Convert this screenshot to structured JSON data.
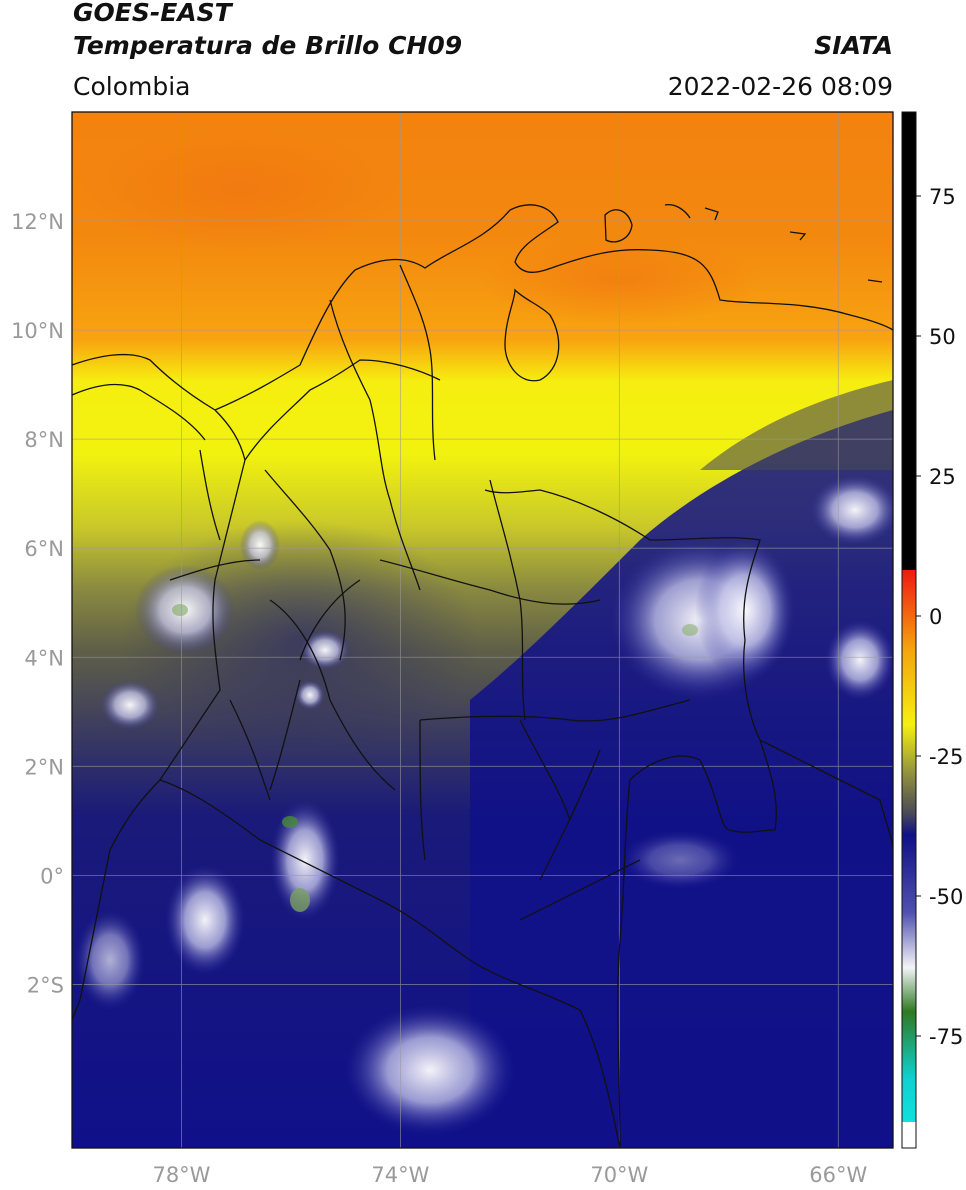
{
  "header": {
    "satellite": "GOES-EAST",
    "product": "Temperatura de Brillo CH09",
    "region": "Colombia",
    "org": "SIATA",
    "datetime": "2022-02-26 08:09"
  },
  "map": {
    "lon_range": [
      -80,
      -65
    ],
    "lat_range": [
      -5,
      14
    ],
    "lon_ticks": [
      {
        "value": -78,
        "label": "78°W"
      },
      {
        "value": -74,
        "label": "74°W"
      },
      {
        "value": -70,
        "label": "70°W"
      },
      {
        "value": -66,
        "label": "66°W"
      }
    ],
    "lat_ticks": [
      {
        "value": 12,
        "label": "12°N"
      },
      {
        "value": 10,
        "label": "10°N"
      },
      {
        "value": 8,
        "label": "8°N"
      },
      {
        "value": 6,
        "label": "6°N"
      },
      {
        "value": 4,
        "label": "4°N"
      },
      {
        "value": 2,
        "label": "2°N"
      },
      {
        "value": 0,
        "label": "0°"
      },
      {
        "value": -2,
        "label": "2°S"
      }
    ],
    "gridlines": true
  },
  "colorbar": {
    "range": [
      -95,
      90
    ],
    "ticks": [
      {
        "value": 75,
        "label": "75"
      },
      {
        "value": 50,
        "label": "50"
      },
      {
        "value": 25,
        "label": "25"
      },
      {
        "value": 0,
        "label": "0"
      },
      {
        "value": -25,
        "label": "-25"
      },
      {
        "value": -50,
        "label": "-50"
      },
      {
        "value": -75,
        "label": "-75"
      }
    ],
    "colors": {
      "black": "#000000",
      "red": "#ee1a10",
      "orange": "#f59a10",
      "yellow": "#f5f010",
      "olive": "#6a6a45",
      "navy": "#101088",
      "white": "#f4f4f8",
      "green": "#2e7a22",
      "cyan": "#10d0d0"
    }
  }
}
